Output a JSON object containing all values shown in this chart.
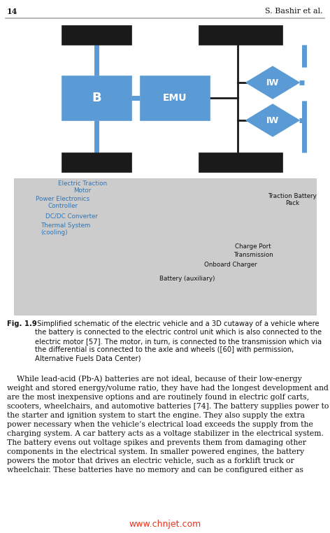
{
  "page_number": "14",
  "header_author": "S. Bashir et al.",
  "header_line_color": "#aaaaaa",
  "bg_color": "#ffffff",
  "blue": "#5b9bd5",
  "dark_blue": "#2e74b5",
  "black_rect": "#1a1a1a",
  "white": "#ffffff",
  "text_color": "#111111",
  "watermark_color": "#e8341c",
  "watermark": "www.chnjet.com",
  "caption_bold": "Fig. 1.9",
  "caption_rest": " Simplified schematic of the electric vehicle and a 3D cutaway of a vehicle where the battery is connected to the electric control unit which is also connected to the electric motor [57]. The motor, in turn, is connected to the transmission which via the differential is connected to the axle and wheels ([60] with permission, Alternative Fuels Data Center)",
  "paragraph": "    While lead-acid (Pb-A) batteries are not ideal, because of their low-energy weight and stored energy/volume ratio, they have had the longest development and are the most inexpensive options and are routinely found in electric golf carts, scooters, wheelchairs, and automotive batteries [74]. The battery supplies power to the starter and ignition system to start the engine. They also supply the extra power necessary when the vehicle’s electrical load exceeds the supply from the charging system. A car battery acts as a voltage stabilizer in the electrical system. The battery evens out voltage spikes and prevents them from damaging other components in the electrical system. In smaller powered engines, the battery powers the motor that drives an electric vehicle, such as a forklift truck or wheelchair. These batteries have no memory and can be configured either as"
}
